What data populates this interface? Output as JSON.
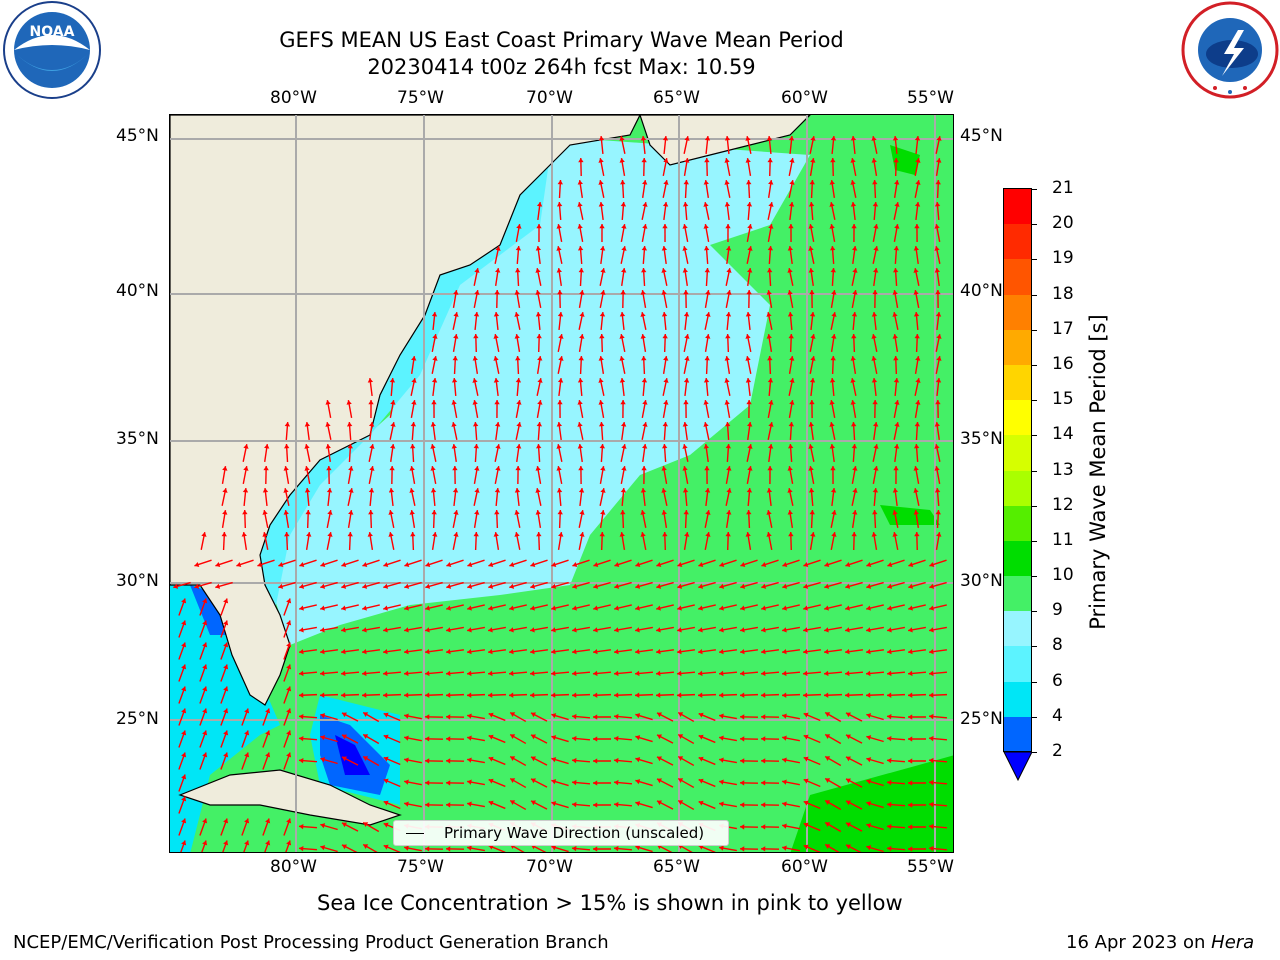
{
  "header": {
    "title_line1": "GEFS MEAN US East Coast Primary Wave Mean Period",
    "title_line2": "20230414 t00z 264h fcst   Max: 10.59"
  },
  "map": {
    "lon_labels": [
      "80°W",
      "75°W",
      "70°W",
      "65°W",
      "60°W",
      "55°W"
    ],
    "lat_labels": [
      "45°N",
      "40°N",
      "35°N",
      "30°N",
      "25°N"
    ],
    "land_color": "#efecdc",
    "legend_text": "Primary Wave Direction (unscaled)"
  },
  "colorbar": {
    "title": "Primary Wave Mean Period [s]",
    "ticks": [
      "21",
      "20",
      "19",
      "18",
      "17",
      "16",
      "15",
      "14",
      "13",
      "12",
      "11",
      "10",
      "9",
      "8",
      "6",
      "4",
      "2"
    ],
    "colors": [
      "#ff0000",
      "#ff2a00",
      "#ff5500",
      "#ff8000",
      "#ffaa00",
      "#ffd500",
      "#ffff00",
      "#d6ff00",
      "#aaff00",
      "#55ee00",
      "#00dd00",
      "#44f066",
      "#97f5ff",
      "#5cf3ff",
      "#00e6f6",
      "#0066ff"
    ],
    "extend_color": "#0000ff",
    "arrow_color": "#ff0000"
  },
  "notes": {
    "sea_ice": "Sea Ice Concentration > 15% is shown in pink to yellow"
  },
  "footer": {
    "left": "NCEP/EMC/Verification Post Processing Product Generation Branch",
    "right_date": "16 Apr 2023 on ",
    "right_machine": "Hera"
  },
  "logos": {
    "noaa_text": "NOAA",
    "noaa_ring": "NATIONAL OCEANIC AND ATMOSPHERIC ADMINISTRATION",
    "nws_ring": "NATIONAL WEATHER SERVICE"
  }
}
